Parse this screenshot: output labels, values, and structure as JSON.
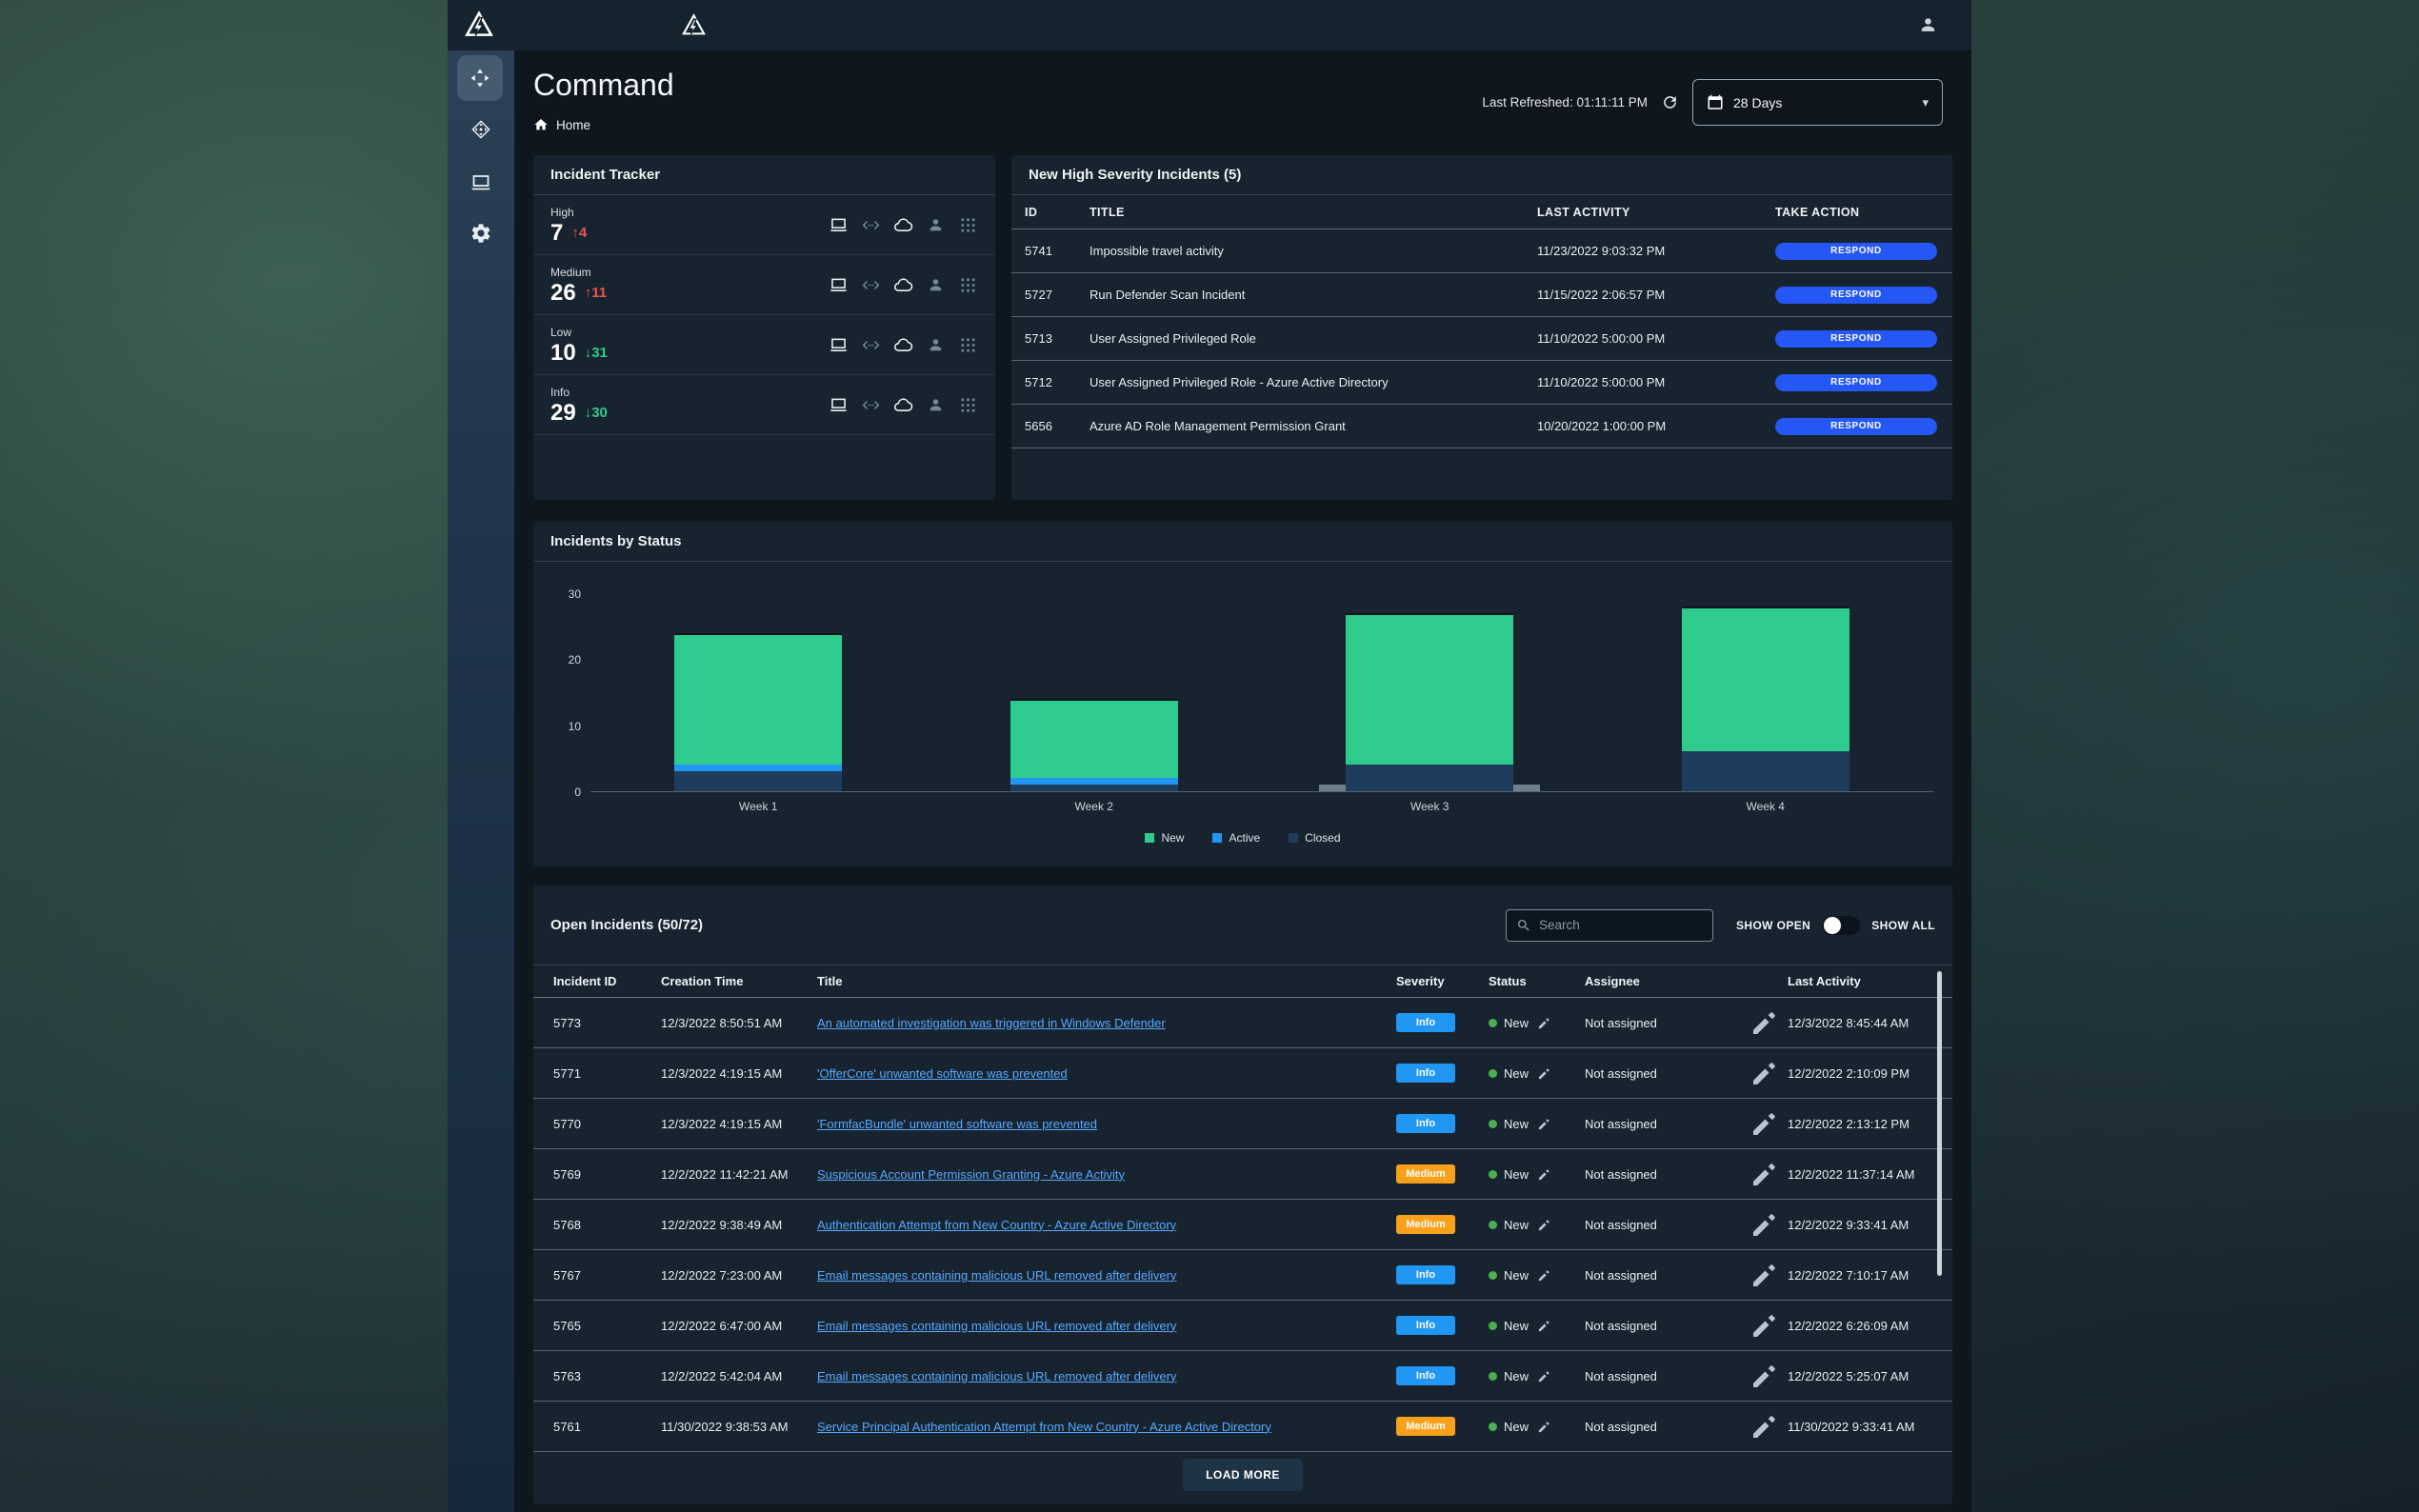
{
  "header": {
    "title": "Command",
    "breadcrumb": "Home",
    "last_refreshed": "Last Refreshed: 01:11:11 PM",
    "date_range": "28 Days"
  },
  "icons": {
    "caret_down": "▾",
    "up_arrow": "↑",
    "down_arrow": "↓"
  },
  "incident_tracker": {
    "title": "Incident Tracker",
    "rows": [
      {
        "label": "High",
        "value": "7",
        "delta": "4",
        "direction": "up"
      },
      {
        "label": "Medium",
        "value": "26",
        "delta": "11",
        "direction": "up"
      },
      {
        "label": "Low",
        "value": "10",
        "delta": "31",
        "direction": "down"
      },
      {
        "label": "Info",
        "value": "29",
        "delta": "30",
        "direction": "down"
      }
    ]
  },
  "high_severity": {
    "title": "New High Severity Incidents (5)",
    "columns": [
      "ID",
      "TITLE",
      "LAST ACTIVITY",
      "TAKE ACTION"
    ],
    "action_label": "RESPOND",
    "rows": [
      {
        "id": "5741",
        "title": "Impossible travel activity",
        "last_activity": "11/23/2022 9:03:32 PM"
      },
      {
        "id": "5727",
        "title": "Run Defender Scan Incident",
        "last_activity": "11/15/2022 2:06:57 PM"
      },
      {
        "id": "5713",
        "title": "User Assigned Privileged Role",
        "last_activity": "11/10/2022 5:00:00 PM"
      },
      {
        "id": "5712",
        "title": "User Assigned Privileged Role - Azure Active Directory",
        "last_activity": "11/10/2022 5:00:00 PM"
      },
      {
        "id": "5656",
        "title": "Azure AD Role Management Permission Grant",
        "last_activity": "10/20/2022 1:00:00 PM"
      }
    ]
  },
  "chart_data": {
    "type": "bar",
    "stacked": true,
    "title": "Incidents by Status",
    "categories": [
      "Week 1",
      "Week 2",
      "Week 3",
      "Week 4"
    ],
    "series": [
      {
        "name": "New",
        "color": "#2fcb8d",
        "values": [
          20,
          12,
          23,
          22
        ]
      },
      {
        "name": "Active",
        "color": "#2196f3",
        "values": [
          1,
          1,
          0,
          0
        ]
      },
      {
        "name": "Closed",
        "color": "#1e3d5c",
        "values": [
          3,
          1,
          4,
          6
        ]
      }
    ],
    "ylim": [
      0,
      30
    ],
    "yticks": [
      0,
      10,
      20,
      30
    ],
    "legend_position": "bottom",
    "background_band": {
      "category": "Week 3",
      "units": 1
    }
  },
  "open_incidents": {
    "title": "Open Incidents (50/72)",
    "controls": {
      "search_placeholder": "Search",
      "show_open": "SHOW OPEN",
      "show_all": "SHOW ALL"
    },
    "columns": [
      "Incident ID",
      "Creation Time",
      "Title",
      "Severity",
      "Status",
      "Assignee",
      "Last Activity"
    ],
    "severity_colors": {
      "Info": "#2196f3",
      "Medium": "#f9a11b"
    },
    "load_more": "LOAD MORE",
    "rows": [
      {
        "id": "5773",
        "created": "12/3/2022 8:50:51 AM",
        "title": "An automated investigation was triggered in Windows Defender",
        "severity": "Info",
        "status": "New",
        "assignee": "Not assigned",
        "last_activity": "12/3/2022 8:45:44 AM"
      },
      {
        "id": "5771",
        "created": "12/3/2022 4:19:15 AM",
        "title": "'OfferCore' unwanted software was prevented",
        "severity": "Info",
        "status": "New",
        "assignee": "Not assigned",
        "last_activity": "12/2/2022 2:10:09 PM"
      },
      {
        "id": "5770",
        "created": "12/3/2022 4:19:15 AM",
        "title": "'FormfacBundle' unwanted software was prevented",
        "severity": "Info",
        "status": "New",
        "assignee": "Not assigned",
        "last_activity": "12/2/2022 2:13:12 PM"
      },
      {
        "id": "5769",
        "created": "12/2/2022 11:42:21 AM",
        "title": "Suspicious Account Permission Granting - Azure Activity",
        "severity": "Medium",
        "status": "New",
        "assignee": "Not assigned",
        "last_activity": "12/2/2022 11:37:14 AM"
      },
      {
        "id": "5768",
        "created": "12/2/2022 9:38:49 AM",
        "title": "Authentication Attempt from New Country - Azure Active Directory",
        "severity": "Medium",
        "status": "New",
        "assignee": "Not assigned",
        "last_activity": "12/2/2022 9:33:41 AM"
      },
      {
        "id": "5767",
        "created": "12/2/2022 7:23:00 AM",
        "title": "Email messages containing malicious URL removed after delivery",
        "severity": "Info",
        "status": "New",
        "assignee": "Not assigned",
        "last_activity": "12/2/2022 7:10:17 AM"
      },
      {
        "id": "5765",
        "created": "12/2/2022 6:47:00 AM",
        "title": "Email messages containing malicious URL removed after delivery",
        "severity": "Info",
        "status": "New",
        "assignee": "Not assigned",
        "last_activity": "12/2/2022 6:26:09 AM"
      },
      {
        "id": "5763",
        "created": "12/2/2022 5:42:04 AM",
        "title": "Email messages containing malicious URL removed after delivery",
        "severity": "Info",
        "status": "New",
        "assignee": "Not assigned",
        "last_activity": "12/2/2022 5:25:07 AM"
      },
      {
        "id": "5761",
        "created": "11/30/2022 9:38:53 AM",
        "title": "Service Principal Authentication Attempt from New Country - Azure Active Directory",
        "severity": "Medium",
        "status": "New",
        "assignee": "Not assigned",
        "last_activity": "11/30/2022 9:33:41 AM"
      }
    ]
  },
  "colors": {
    "panel_bg": "#17242f",
    "content_bg": "#0e171e",
    "topbar_bg": "#15232f",
    "respond_blue": "#2457f5",
    "link_blue": "#58a8ff",
    "delta_up_red": "#ef5350",
    "delta_down_green": "#2fcb8d",
    "status_dot_green": "#4caf50"
  }
}
